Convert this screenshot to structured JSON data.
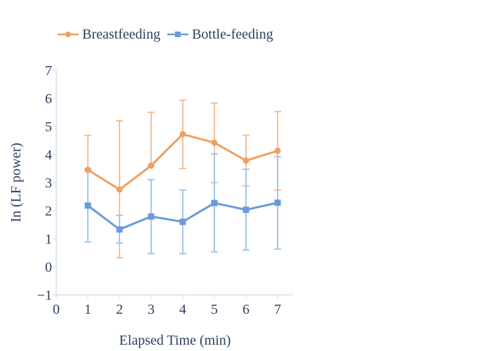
{
  "chart_data": {
    "type": "line",
    "title": "",
    "xlabel": "Elapsed Time (min)",
    "ylabel": "In (LF power)",
    "xlim": [
      0,
      7.5
    ],
    "ylim": [
      -1,
      7
    ],
    "x_ticks": [
      0,
      1,
      2,
      3,
      4,
      5,
      6,
      7
    ],
    "y_ticks": [
      -1,
      0,
      1,
      2,
      3,
      4,
      5,
      6,
      7
    ],
    "x_tick_labels": [
      "0",
      "1",
      "2",
      "3",
      "4",
      "5",
      "6",
      "7"
    ],
    "y_tick_labels": [
      "−1",
      "0",
      "1",
      "2",
      "3",
      "4",
      "5",
      "6",
      "7"
    ],
    "legend_position": "top-left",
    "grid": false,
    "x": [
      1,
      2,
      3,
      4,
      5,
      6,
      7
    ],
    "series": [
      {
        "name": "Breastfeeding",
        "color": "#f0a060",
        "error_color": "#f4c09a",
        "marker": "circle",
        "values": [
          3.45,
          2.75,
          3.6,
          4.72,
          4.42,
          3.78,
          4.13
        ],
        "error_low": [
          3.45,
          0.32,
          3.6,
          3.5,
          3.0,
          2.88,
          2.73
        ],
        "error_high": [
          4.68,
          5.2,
          5.5,
          5.93,
          5.83,
          4.68,
          5.53
        ]
      },
      {
        "name": "Bottle-feeding",
        "color": "#6a9bd8",
        "error_color": "#a3c6ec",
        "marker": "square",
        "values": [
          2.18,
          1.33,
          1.79,
          1.6,
          2.27,
          2.03,
          2.28
        ],
        "error_low": [
          0.88,
          0.85,
          0.47,
          0.47,
          0.53,
          0.6,
          0.63
        ],
        "error_high": [
          3.48,
          1.83,
          3.1,
          2.73,
          4.02,
          3.47,
          3.92
        ]
      }
    ]
  }
}
